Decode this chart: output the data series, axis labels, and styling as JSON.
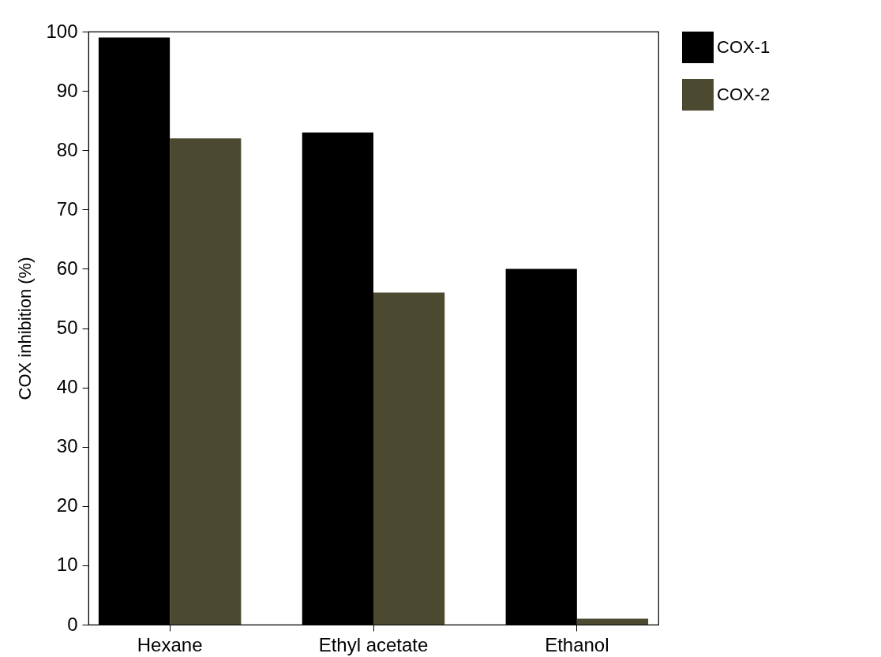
{
  "chart_data": {
    "type": "bar",
    "ylabel": "COX inhibition (%)",
    "categories": [
      "Hexane",
      "Ethyl acetate",
      "Ethanol"
    ],
    "series": [
      {
        "name": "COX-1",
        "color": "#000000",
        "values": [
          99,
          83,
          60
        ]
      },
      {
        "name": "COX-2",
        "color": "#4b4a30",
        "values": [
          82,
          56,
          1
        ]
      }
    ],
    "ylim": [
      0,
      100
    ],
    "yticks": [
      0,
      10,
      20,
      30,
      40,
      50,
      60,
      70,
      80,
      90,
      100
    ],
    "grid": false,
    "legend": "right"
  }
}
